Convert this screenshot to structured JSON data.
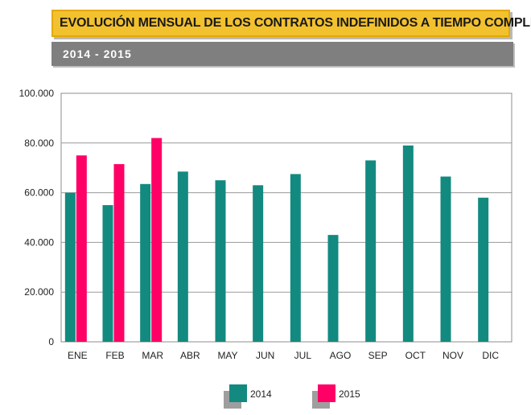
{
  "header": {
    "title": "EVOLUCIÓN MENSUAL DE LOS CONTRATOS INDEFINIDOS A TIEMPO COMPLETO",
    "subtitle": "2014 - 2015"
  },
  "colors": {
    "series_2014": "#138a80",
    "series_2015": "#ff0066",
    "grid": "#9a9a9a",
    "title_bg": "#f2c12e",
    "subtitle_bg": "#7f7f7f"
  },
  "chart_data": {
    "type": "bar",
    "title": "EVOLUCIÓN MENSUAL DE LOS CONTRATOS INDEFINIDOS A TIEMPO COMPLETO",
    "subtitle": "2014 - 2015",
    "categories": [
      "ENE",
      "FEB",
      "MAR",
      "ABR",
      "MAY",
      "JUN",
      "JUL",
      "AGO",
      "SEP",
      "OCT",
      "NOV",
      "DIC"
    ],
    "series": [
      {
        "name": "2014",
        "color": "#138a80",
        "values": [
          60000,
          55000,
          63500,
          68500,
          65000,
          63000,
          67500,
          43000,
          73000,
          79000,
          66500,
          58000
        ]
      },
      {
        "name": "2015",
        "color": "#ff0066",
        "values": [
          75000,
          71500,
          82000,
          null,
          null,
          null,
          null,
          null,
          null,
          null,
          null,
          null
        ]
      }
    ],
    "ylim": [
      0,
      100000
    ],
    "yticks": [
      0,
      20000,
      40000,
      60000,
      80000,
      100000
    ],
    "ytick_labels": [
      "0",
      "20.000",
      "40.000",
      "60.000",
      "80.000",
      "100.000"
    ],
    "grid": true,
    "legend_position": "bottom-center"
  }
}
